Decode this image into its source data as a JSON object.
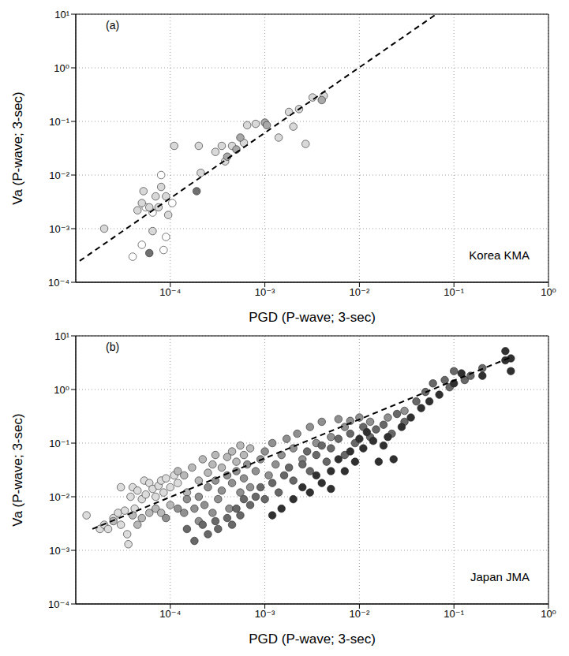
{
  "chart_data": [
    {
      "type": "scatter",
      "title": "(a)",
      "annotation": "Korea KMA",
      "x_label": "PGD (P-wave; 3-sec)",
      "y_label": "Va (P-wave; 3-sec)",
      "log": true,
      "grid": true,
      "xlim": [
        1e-05,
        1
      ],
      "ylim": [
        0.0001,
        10
      ],
      "xticks": [
        {
          "value": 0.0001,
          "label": "10⁻⁴"
        },
        {
          "value": 0.001,
          "label": "10⁻³"
        },
        {
          "value": 0.01,
          "label": "10⁻²"
        },
        {
          "value": 0.1,
          "label": "10⁻¹"
        },
        {
          "value": 1,
          "label": "10⁰"
        }
      ],
      "yticks": [
        {
          "value": 0.0001,
          "label": "10⁻⁴"
        },
        {
          "value": 0.001,
          "label": "10⁻³"
        },
        {
          "value": 0.01,
          "label": "10⁻²"
        },
        {
          "value": 0.1,
          "label": "10⁻¹"
        },
        {
          "value": 1,
          "label": "10⁰"
        },
        {
          "value": 10,
          "label": "10¹"
        }
      ],
      "series": [
        {
          "type": "scatter",
          "color": "#ffffff",
          "marker": "circle",
          "x": [
            4e-05,
            5e-05,
            5.5e-05,
            6.5e-05,
            8e-05,
            8.5e-05,
            9e-05,
            0.000105
          ],
          "values": [
            0.0003,
            0.0005,
            0.0025,
            0.002,
            0.01,
            0.0004,
            0.0007,
            0.003
          ]
        },
        {
          "type": "scatter",
          "color": "#d8d8d8",
          "marker": "circle",
          "x": [
            2e-05,
            4.5e-05,
            5e-05,
            5.2e-05,
            6e-05,
            6.5e-05,
            7e-05,
            7.5e-05,
            8e-05,
            9e-05,
            9.5e-05,
            0.00011,
            0.0002,
            0.00021,
            0.0003,
            0.00035,
            0.00038,
            0.00045,
            0.0006,
            0.00065,
            0.0008,
            0.0014,
            0.0018,
            0.002,
            0.0023,
            0.0027,
            0.0032,
            0.0042
          ],
          "values": [
            0.001,
            0.0022,
            0.003,
            0.005,
            0.0025,
            0.0009,
            0.004,
            0.0025,
            0.006,
            0.004,
            0.0018,
            0.035,
            0.035,
            0.011,
            0.027,
            0.035,
            0.018,
            0.035,
            0.04,
            0.085,
            0.09,
            0.05,
            0.15,
            0.08,
            0.17,
            0.038,
            0.28,
            0.3
          ]
        },
        {
          "type": "scatter",
          "color": "#a8a8a8",
          "marker": "circle",
          "x": [
            0.0004,
            0.0005,
            0.00055,
            0.001,
            0.00105,
            0.004
          ],
          "values": [
            0.022,
            0.03,
            0.05,
            0.095,
            0.085,
            0.25
          ]
        },
        {
          "type": "scatter",
          "color": "#707070",
          "marker": "circle",
          "x": [
            6e-05,
            0.00019
          ],
          "values": [
            0.00035,
            0.005
          ]
        },
        {
          "type": "line",
          "color": "#000000",
          "line_style": "dashed",
          "x": [
            1.1e-05,
            0.065
          ],
          "values": [
            0.00025,
            10
          ]
        }
      ]
    },
    {
      "type": "scatter",
      "title": "(b)",
      "annotation": "Japan JMA",
      "x_label": "PGD (P-wave; 3-sec)",
      "y_label": "Va (P-wave; 3-sec)",
      "log": true,
      "grid": true,
      "xlim": [
        1e-05,
        1
      ],
      "ylim": [
        0.0001,
        10
      ],
      "xticks": [
        {
          "value": 0.0001,
          "label": "10⁻⁴"
        },
        {
          "value": 0.001,
          "label": "10⁻³"
        },
        {
          "value": 0.01,
          "label": "10⁻²"
        },
        {
          "value": 0.1,
          "label": "10⁻¹"
        },
        {
          "value": 1,
          "label": "10⁰"
        }
      ],
      "yticks": [
        {
          "value": 0.0001,
          "label": "10⁻⁴"
        },
        {
          "value": 0.001,
          "label": "10⁻³"
        },
        {
          "value": 0.01,
          "label": "10⁻²"
        },
        {
          "value": 0.1,
          "label": "10⁻¹"
        },
        {
          "value": 1,
          "label": "10⁰"
        },
        {
          "value": 10,
          "label": "10¹"
        }
      ],
      "series": [
        {
          "type": "scatter",
          "color": "#dcdcdc",
          "marker": "circle",
          "x": [
            1.3e-05,
            1.8e-05,
            2e-05,
            2.2e-05,
            2.5e-05,
            2.8e-05,
            3e-05,
            3e-05,
            3.3e-05,
            3.5e-05,
            3.6e-05,
            3.8e-05,
            4e-05,
            4.2e-05,
            4.5e-05,
            5e-05,
            5.3e-05,
            5.5e-05,
            6e-05,
            6.5e-05,
            7e-05,
            7.5e-05,
            8e-05,
            8.5e-05,
            9e-05,
            0.0001,
            0.00011,
            0.00012
          ],
          "values": [
            0.0045,
            0.0025,
            0.003,
            0.0025,
            0.004,
            0.005,
            0.003,
            0.015,
            0.0055,
            0.002,
            0.0013,
            0.01,
            0.015,
            0.006,
            0.013,
            0.009,
            0.02,
            0.011,
            0.018,
            0.014,
            0.01,
            0.016,
            0.02,
            0.012,
            0.022,
            0.015,
            0.025,
            0.018
          ]
        },
        {
          "type": "scatter",
          "color": "#b8b8b8",
          "marker": "circle",
          "x": [
            2.5e-05,
            4e-05,
            4.5e-05,
            5e-05,
            6e-05,
            7e-05,
            8e-05,
            0.0001,
            0.00012,
            0.00014,
            0.00015,
            0.00017,
            0.0002,
            0.00022,
            0.00025,
            0.00028,
            0.0003,
            0.00035,
            0.0004,
            0.00045,
            0.0005,
            0.00055,
            0.0006,
            0.0007
          ],
          "values": [
            0.0035,
            0.0045,
            0.003,
            0.004,
            0.005,
            0.006,
            0.005,
            0.007,
            0.03,
            0.025,
            0.012,
            0.035,
            0.02,
            0.05,
            0.028,
            0.04,
            0.06,
            0.035,
            0.055,
            0.07,
            0.045,
            0.09,
            0.06,
            0.08
          ]
        },
        {
          "type": "scatter",
          "color": "#909090",
          "marker": "circle",
          "x": [
            9e-05,
            0.00012,
            0.00014,
            0.00015,
            0.00018,
            0.0002,
            0.0002,
            0.00023,
            0.00025,
            0.00028,
            0.0003,
            0.00032,
            0.00035,
            0.0004,
            0.00042,
            0.00045,
            0.0005,
            0.00055,
            0.0006,
            0.00065,
            0.0007,
            0.0008,
            0.0009,
            0.001,
            0.0011,
            0.0012,
            0.0013,
            0.0015,
            0.0017,
            0.002,
            0.0022,
            0.0025,
            0.003,
            0.0035,
            0.004,
            0.005,
            0.006,
            0.007,
            0.008,
            0.01,
            0.013,
            0.02,
            0.03
          ],
          "values": [
            0.004,
            0.006,
            0.005,
            0.009,
            0.006,
            0.01,
            0.0035,
            0.007,
            0.015,
            0.005,
            0.02,
            0.009,
            0.013,
            0.025,
            0.006,
            0.018,
            0.03,
            0.012,
            0.022,
            0.04,
            0.015,
            0.03,
            0.05,
            0.07,
            0.025,
            0.1,
            0.04,
            0.06,
            0.12,
            0.08,
            0.15,
            0.05,
            0.2,
            0.1,
            0.25,
            0.13,
            0.28,
            0.2,
            0.26,
            0.3,
            0.25,
            0.3,
            0.4
          ]
        },
        {
          "type": "scatter",
          "color": "#686868",
          "marker": "circle",
          "x": [
            0.00015,
            0.00018,
            0.00022,
            0.00025,
            0.0003,
            0.00032,
            0.0004,
            0.00045,
            0.0005,
            0.00055,
            0.0006,
            0.0007,
            0.0008,
            0.0009,
            0.001,
            0.0012,
            0.0014,
            0.0016,
            0.0018,
            0.002,
            0.0025,
            0.0028,
            0.003,
            0.0035,
            0.004,
            0.0045,
            0.005,
            0.006,
            0.007,
            0.008,
            0.009,
            0.011,
            0.013,
            0.015,
            0.018,
            0.022,
            0.025,
            0.03,
            0.04,
            0.05,
            0.06,
            0.08,
            0.09,
            0.1,
            0.13,
            0.15,
            0.2
          ],
          "values": [
            0.0025,
            0.0015,
            0.003,
            0.002,
            0.0035,
            0.0025,
            0.004,
            0.003,
            0.006,
            0.0045,
            0.009,
            0.007,
            0.01,
            0.015,
            0.009,
            0.018,
            0.012,
            0.025,
            0.035,
            0.02,
            0.04,
            0.07,
            0.03,
            0.06,
            0.09,
            0.045,
            0.08,
            0.12,
            0.06,
            0.15,
            0.1,
            0.2,
            0.13,
            0.18,
            0.22,
            0.15,
            0.35,
            0.25,
            0.6,
            0.9,
            1.3,
            1.5,
            1.1,
            2.2,
            1.5,
            1.8,
            2.5
          ]
        },
        {
          "type": "scatter",
          "color": "#303030",
          "marker": "circle",
          "x": [
            0.0012,
            0.0015,
            0.002,
            0.0025,
            0.003,
            0.0035,
            0.004,
            0.005,
            0.005,
            0.006,
            0.007,
            0.008,
            0.009,
            0.01,
            0.011,
            0.012,
            0.014,
            0.016,
            0.018,
            0.02,
            0.023,
            0.028,
            0.035,
            0.045,
            0.055,
            0.07,
            0.1,
            0.12,
            0.2,
            0.35,
            0.35,
            0.4,
            0.4
          ],
          "values": [
            0.0045,
            0.006,
            0.009,
            0.015,
            0.012,
            0.025,
            0.018,
            0.03,
            0.014,
            0.05,
            0.03,
            0.07,
            0.045,
            0.12,
            0.08,
            0.16,
            0.11,
            0.045,
            0.09,
            0.13,
            0.05,
            0.2,
            0.3,
            0.45,
            0.6,
            0.8,
            1.3,
            2,
            1.8,
            3.5,
            5.2,
            3.8,
            2.2
          ]
        },
        {
          "type": "line",
          "color": "#000000",
          "line_style": "dashed",
          "x": [
            1.5e-05,
            0.4
          ],
          "values": [
            0.0025,
            4
          ]
        }
      ]
    }
  ]
}
